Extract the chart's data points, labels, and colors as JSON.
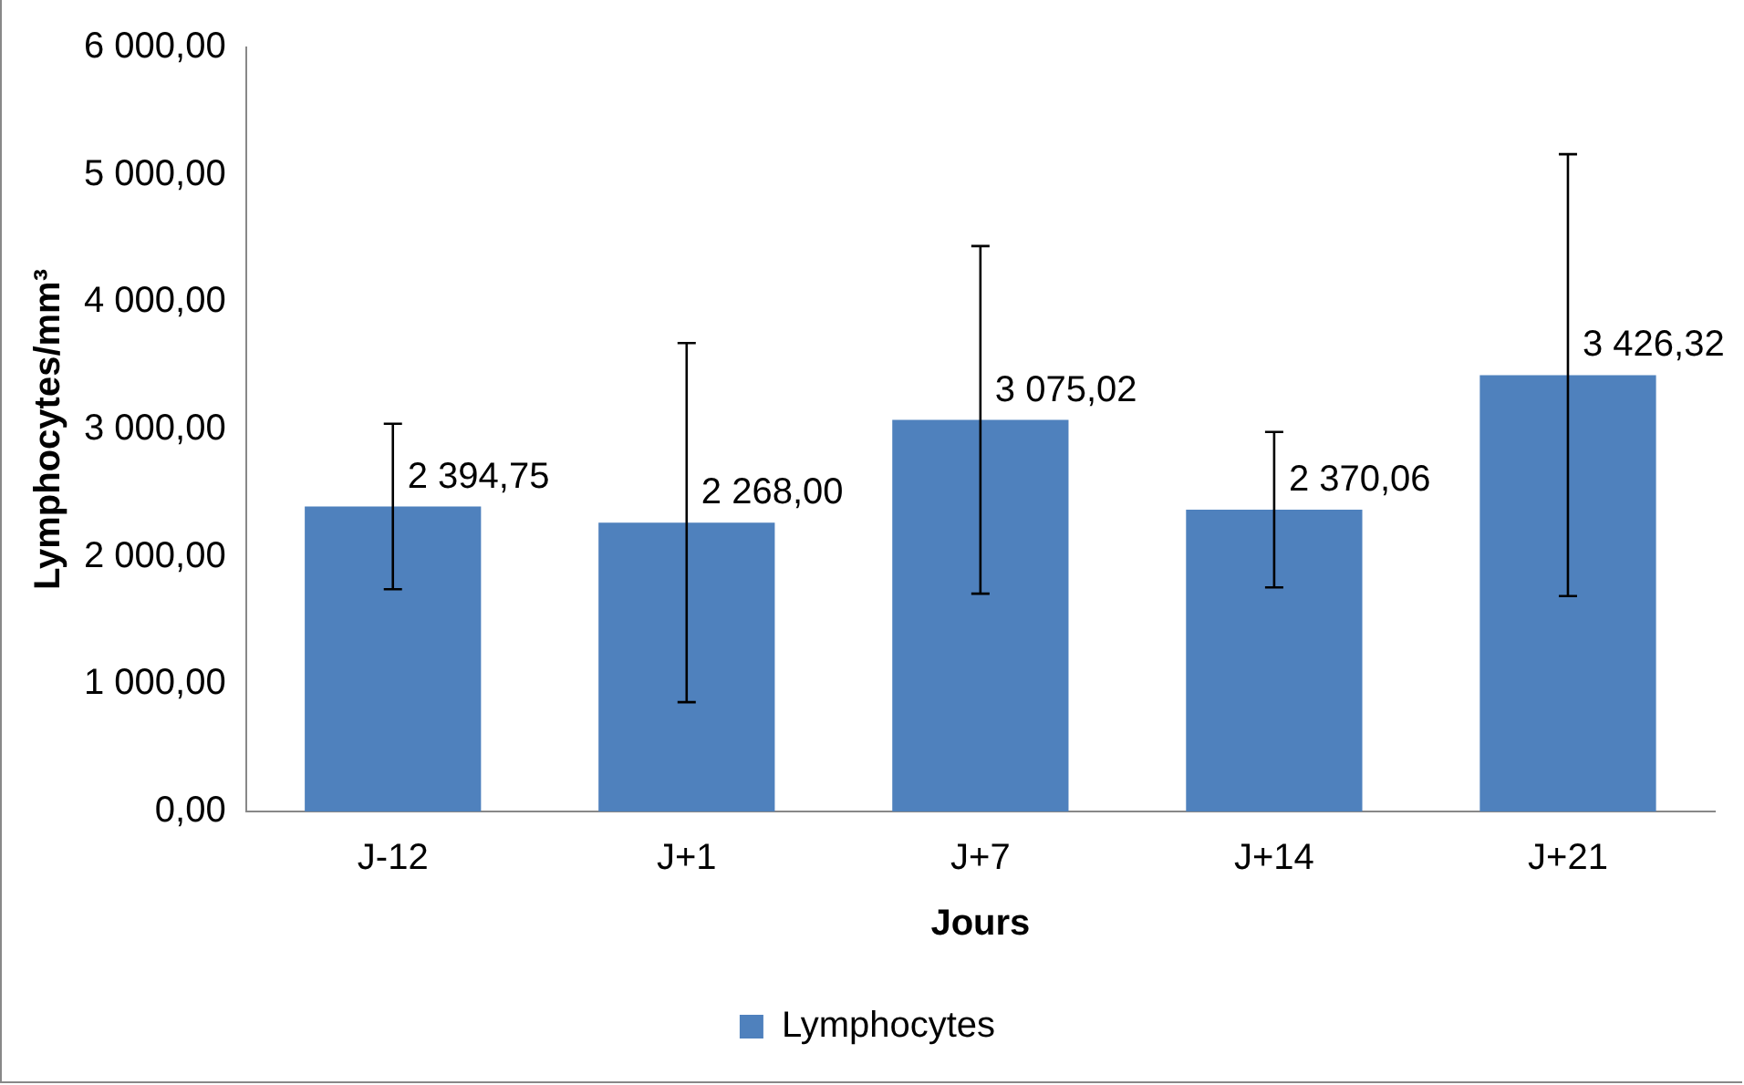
{
  "chart_data": {
    "type": "bar",
    "xlabel": "Jours",
    "ylabel": "Lymphocytes/mm³",
    "categories": [
      "J-12",
      "J+1",
      "J+7",
      "J+14",
      "J+21"
    ],
    "series": [
      {
        "name": "Lymphocytes",
        "color": "#4f81bd",
        "values": [
          2394.75,
          2268.0,
          3075.02,
          2370.06,
          3426.32
        ],
        "errors": [
          650,
          1410,
          1365,
          610,
          1735
        ],
        "value_labels": [
          "2 394,75",
          "2 268,00",
          "3 075,02",
          "2 370,06",
          "3 426,32"
        ]
      }
    ],
    "ylim": [
      0,
      6000
    ],
    "yticks": [
      {
        "value": 0,
        "label": "0,00"
      },
      {
        "value": 1000,
        "label": "1 000,00"
      },
      {
        "value": 2000,
        "label": "2 000,00"
      },
      {
        "value": 3000,
        "label": "3 000,00"
      },
      {
        "value": 4000,
        "label": "4 000,00"
      },
      {
        "value": 5000,
        "label": "5 000,00"
      },
      {
        "value": 6000,
        "label": "6 000,00"
      }
    ],
    "grid": false,
    "legend": "bottom"
  }
}
